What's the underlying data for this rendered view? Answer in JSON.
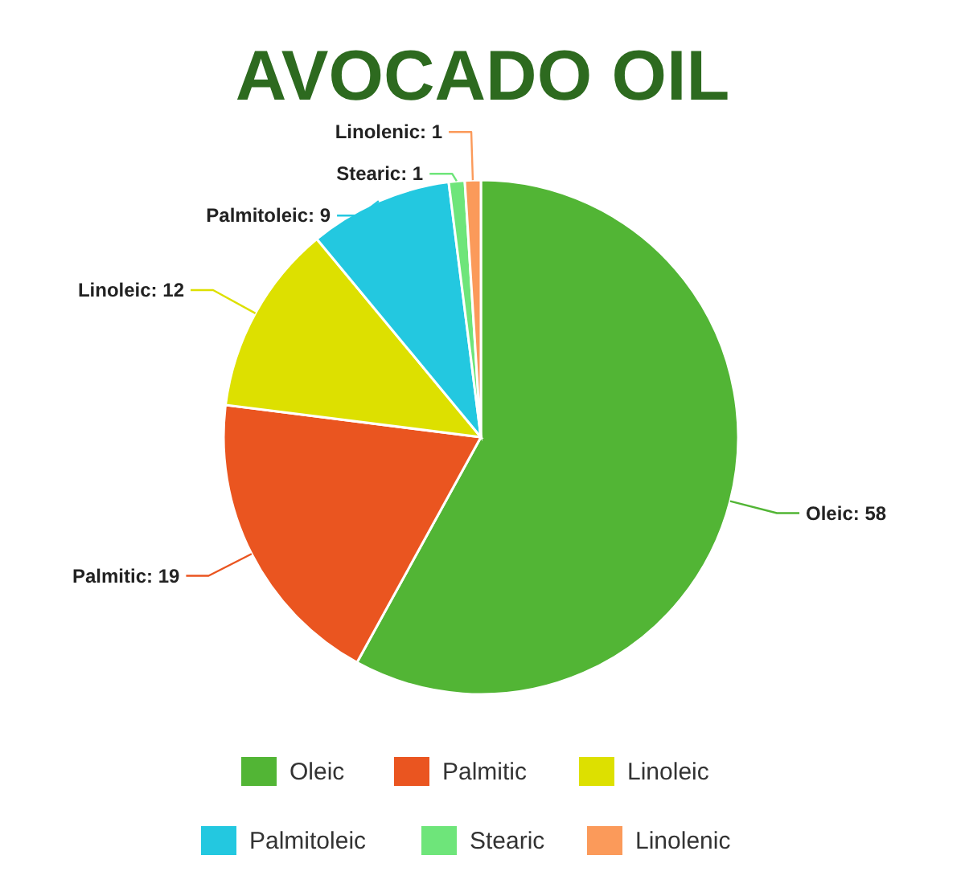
{
  "chart_data": {
    "type": "pie",
    "title": "AVOCADO OIL",
    "categories": [
      "Oleic",
      "Palmitic",
      "Linoleic",
      "Palmitoleic",
      "Stearic",
      "Linolenic"
    ],
    "values": [
      58,
      19,
      12,
      9,
      1,
      1
    ],
    "value_labels": [
      "Oleic: 58",
      "Palmitic: 19",
      "Linoleic: 12",
      "Palmitoleic: 9",
      "Stearic: 1",
      "Linolenic: 1"
    ],
    "colors": [
      "#52b535",
      "#ea5520",
      "#dde000",
      "#23c8e0",
      "#6ee57a",
      "#fb9a5a"
    ],
    "legend": "bottom"
  }
}
